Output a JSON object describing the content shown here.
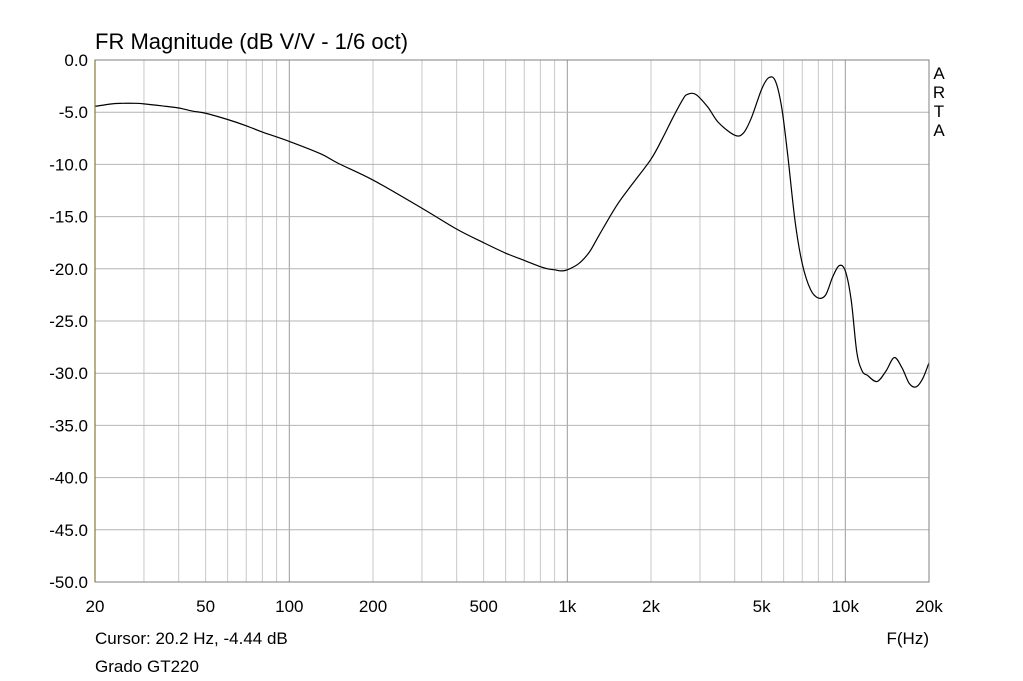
{
  "title": "FR Magnitude (dB V/V - 1/6 oct)",
  "watermark": "ARTA",
  "cursor_text": "Cursor: 20.2 Hz, -4.44 dB",
  "device_name": "Grado GT220",
  "colors": {
    "curve": "#000000",
    "grid": "#b4b4b4",
    "axis": "#808080",
    "left_axis": "#8a7a3a"
  },
  "chart_data": {
    "type": "line",
    "title": "FR Magnitude (dB V/V - 1/6 oct)",
    "xlabel": "F(Hz)",
    "ylabel": "",
    "xscale": "log",
    "xlim": [
      20,
      20000
    ],
    "ylim": [
      -50,
      0
    ],
    "grid": true,
    "x_ticks": [
      {
        "v": 20,
        "label": "20"
      },
      {
        "v": 50,
        "label": "50"
      },
      {
        "v": 100,
        "label": "100"
      },
      {
        "v": 200,
        "label": "200"
      },
      {
        "v": 500,
        "label": "500"
      },
      {
        "v": 1000,
        "label": "1k"
      },
      {
        "v": 2000,
        "label": "2k"
      },
      {
        "v": 5000,
        "label": "5k"
      },
      {
        "v": 10000,
        "label": "10k"
      },
      {
        "v": 20000,
        "label": "20k"
      }
    ],
    "y_ticks": [
      {
        "v": 0,
        "label": "0.0"
      },
      {
        "v": -5,
        "label": "-5.0"
      },
      {
        "v": -10,
        "label": "-10.0"
      },
      {
        "v": -15,
        "label": "-15.0"
      },
      {
        "v": -20,
        "label": "-20.0"
      },
      {
        "v": -25,
        "label": "-25.0"
      },
      {
        "v": -30,
        "label": "-30.0"
      },
      {
        "v": -35,
        "label": "-35.0"
      },
      {
        "v": -40,
        "label": "-40.0"
      },
      {
        "v": -45,
        "label": "-45.0"
      },
      {
        "v": -50,
        "label": "-50.0"
      }
    ],
    "series": [
      {
        "x": [
          20,
          23,
          25,
          28,
          30,
          35,
          40,
          45,
          50,
          60,
          70,
          80,
          100,
          130,
          150,
          200,
          300,
          400,
          500,
          600,
          700,
          800,
          850,
          900,
          950,
          1000,
          1100,
          1200,
          1300,
          1500,
          1700,
          2000,
          2200,
          2400,
          2600,
          2700,
          2900,
          3200,
          3500,
          4000,
          4300,
          4600,
          5000,
          5300,
          5600,
          5900,
          6200,
          6600,
          7000,
          7500,
          8000,
          8500,
          9000,
          9500,
          10000,
          10500,
          11000,
          11500,
          12000,
          13000,
          14000,
          15000,
          16000,
          17000,
          18000,
          19000,
          20000
        ],
        "y": [
          -4.44,
          -4.2,
          -4.15,
          -4.15,
          -4.2,
          -4.4,
          -4.6,
          -4.9,
          -5.1,
          -5.7,
          -6.3,
          -6.9,
          -7.8,
          -9.0,
          -9.9,
          -11.5,
          -14.2,
          -16.2,
          -17.5,
          -18.5,
          -19.2,
          -19.8,
          -20.0,
          -20.1,
          -20.2,
          -20.1,
          -19.5,
          -18.4,
          -16.8,
          -14.0,
          -12.0,
          -9.5,
          -7.5,
          -5.5,
          -3.8,
          -3.3,
          -3.3,
          -4.5,
          -6.0,
          -7.2,
          -7.0,
          -5.5,
          -2.8,
          -1.7,
          -2.0,
          -4.5,
          -9.0,
          -15.5,
          -19.5,
          -22.0,
          -22.8,
          -22.5,
          -20.8,
          -19.7,
          -20.2,
          -23.0,
          -28.0,
          -29.8,
          -30.2,
          -30.8,
          -29.8,
          -28.5,
          -29.5,
          -31.0,
          -31.3,
          -30.5,
          -29.0
        ]
      }
    ]
  }
}
